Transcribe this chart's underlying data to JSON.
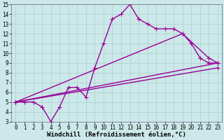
{
  "line1_x": [
    0,
    1,
    2,
    3,
    4,
    5,
    6,
    7,
    8,
    9,
    10,
    11,
    12,
    13,
    14,
    15,
    16,
    17,
    18,
    19,
    20,
    21,
    22,
    23
  ],
  "line1_y": [
    5,
    5,
    5,
    4.5,
    3.0,
    4.5,
    6.5,
    6.5,
    5.5,
    8.5,
    11.0,
    13.5,
    14.0,
    15.0,
    13.5,
    13.0,
    12.5,
    12.5,
    12.5,
    12.0,
    11.0,
    9.5,
    9.0,
    9.0
  ],
  "line2_x": [
    0,
    23
  ],
  "line2_y": [
    5.0,
    9.0
  ],
  "line3_x": [
    0,
    19,
    22,
    23
  ],
  "line3_y": [
    5.0,
    12.0,
    9.5,
    9.0
  ],
  "line4_x": [
    0,
    23
  ],
  "line4_y": [
    5.0,
    8.5
  ],
  "color": "#990099",
  "bg_color": "#cce8e8",
  "xlabel": "Windchill (Refroidissement éolien,°C)",
  "xlim": [
    -0.5,
    23.5
  ],
  "ylim": [
    3,
    15
  ],
  "yticks": [
    3,
    4,
    5,
    6,
    7,
    8,
    9,
    10,
    11,
    12,
    13,
    14,
    15
  ],
  "xticks": [
    0,
    1,
    2,
    3,
    4,
    5,
    6,
    7,
    8,
    9,
    10,
    11,
    12,
    13,
    14,
    15,
    16,
    17,
    18,
    19,
    20,
    21,
    22,
    23
  ],
  "marker": "+",
  "markersize": 4,
  "linewidth": 1.0,
  "xlabel_fontsize": 6.5,
  "tick_fontsize": 5.5,
  "grid_color": "#aacfcf",
  "grid_linewidth": 0.5
}
